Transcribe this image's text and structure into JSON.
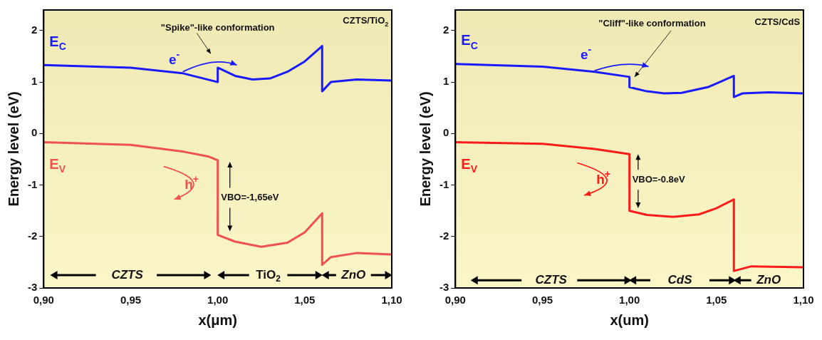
{
  "chart_data": [
    {
      "type": "line",
      "xlabel": "x(μm)",
      "ylabel": "Energy level (eV)",
      "xlim": [
        0.9,
        1.1
      ],
      "ylim": [
        -3,
        2.4
      ],
      "xticks": [
        {
          "value": 0.9,
          "label": "0,90"
        },
        {
          "value": 0.95,
          "label": "0,95"
        },
        {
          "value": 1.0,
          "label": "1,00"
        },
        {
          "value": 1.05,
          "label": "1,05"
        },
        {
          "value": 1.1,
          "label": "1,10"
        }
      ],
      "yticks": [
        -3,
        -2,
        -1,
        0,
        1,
        2
      ],
      "grid": false,
      "legend": false,
      "marker": "none",
      "line_style": "solid",
      "series": [
        {
          "name": "E$_{C}$",
          "color": "#1a1aff",
          "x": [
            0.9,
            0.95,
            0.98,
            1.0,
            1.0,
            1.01,
            1.02,
            1.03,
            1.04,
            1.05,
            1.06,
            1.06,
            1.065,
            1.08,
            1.1
          ],
          "values": [
            1.33,
            1.28,
            1.17,
            1.0,
            1.28,
            1.12,
            1.05,
            1.07,
            1.2,
            1.4,
            1.7,
            0.82,
            1.0,
            1.05,
            1.03
          ]
        },
        {
          "name": "E$_{V}$",
          "color": "#f05050",
          "x": [
            0.9,
            0.95,
            0.98,
            0.995,
            1.0,
            1.0,
            1.01,
            1.025,
            1.04,
            1.05,
            1.06,
            1.06,
            1.065,
            1.08,
            1.1
          ],
          "values": [
            -0.17,
            -0.22,
            -0.35,
            -0.45,
            -0.52,
            -1.97,
            -2.1,
            -2.2,
            -2.12,
            -1.92,
            -1.55,
            -2.55,
            -2.4,
            -2.32,
            -2.35
          ]
        }
      ],
      "annotations": [
        "\"Spike\"-like conformation",
        "CZTS/TiO$_{2}$",
        "e$^{-}$",
        "h$^{+}$",
        "VBO=-1,65eV",
        "CZTS",
        "TiO$_{2}$",
        "ZnO"
      ]
    },
    {
      "type": "line",
      "xlabel": "x(um)",
      "ylabel": "Energy level (eV)",
      "xlim": [
        0.9,
        1.1
      ],
      "ylim": [
        -3,
        2.4
      ],
      "xticks": [
        {
          "value": 0.9,
          "label": "0,90"
        },
        {
          "value": 0.95,
          "label": "0,95"
        },
        {
          "value": 1.0,
          "label": "1,00"
        },
        {
          "value": 1.05,
          "label": "1,05"
        },
        {
          "value": 1.1,
          "label": "1,10"
        }
      ],
      "yticks": [
        -3,
        -2,
        -1,
        0,
        1,
        2
      ],
      "grid": false,
      "legend": false,
      "marker": "none",
      "line_style": "solid",
      "series": [
        {
          "name": "E$_{C}$",
          "color": "#1a1aff",
          "x": [
            0.9,
            0.95,
            0.98,
            1.0,
            1.0,
            1.01,
            1.02,
            1.03,
            1.045,
            1.06,
            1.06,
            1.065,
            1.08,
            1.1
          ],
          "values": [
            1.35,
            1.3,
            1.2,
            1.1,
            0.9,
            0.82,
            0.78,
            0.79,
            0.9,
            1.12,
            0.71,
            0.78,
            0.8,
            0.78
          ]
        },
        {
          "name": "E$_{V}$",
          "color": "#ff1a1a",
          "x": [
            0.9,
            0.95,
            0.98,
            1.0,
            1.0,
            1.01,
            1.025,
            1.04,
            1.05,
            1.06,
            1.06,
            1.07,
            1.1
          ],
          "values": [
            -0.17,
            -0.2,
            -0.3,
            -0.4,
            -1.5,
            -1.58,
            -1.62,
            -1.57,
            -1.45,
            -1.28,
            -2.67,
            -2.58,
            -2.6
          ]
        }
      ],
      "annotations": [
        "\"Cliff\"-like conformation",
        "CZTS/CdS",
        "e$^{-}$",
        "h$^{+}$",
        "VBO=-0.8eV",
        "CZTS",
        "CdS",
        "ZnO"
      ]
    }
  ]
}
